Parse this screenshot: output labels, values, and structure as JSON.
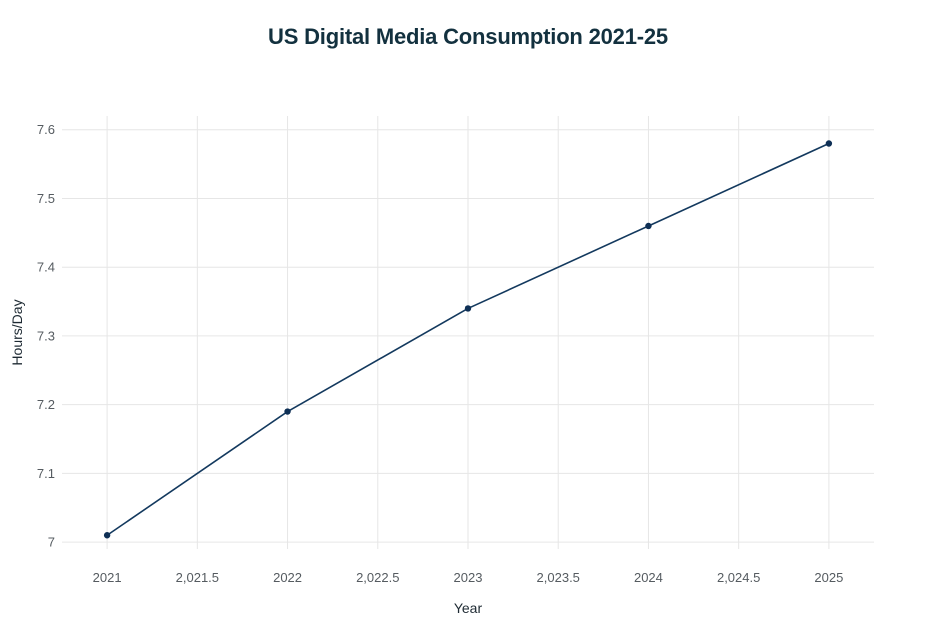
{
  "chart_data": {
    "type": "line",
    "title": "US Digital Media Consumption 2021-25",
    "xlabel": "Year",
    "ylabel": "Hours/Day",
    "x": [
      2021,
      2022,
      2023,
      2024,
      2025
    ],
    "series": [
      {
        "values": [
          7.01,
          7.19,
          7.34,
          7.46,
          7.58
        ]
      }
    ],
    "xlim": [
      2020.75,
      2025.25
    ],
    "ylim": [
      6.99,
      7.62
    ],
    "x_ticks": [
      2021,
      2021.5,
      2022,
      2022.5,
      2023,
      2023.5,
      2024,
      2024.5,
      2025
    ],
    "x_tick_labels": [
      "2021",
      "2,021.5",
      "2022",
      "2,022.5",
      "2023",
      "2,023.5",
      "2024",
      "2,024.5",
      "2025"
    ],
    "y_ticks": [
      7,
      7.1,
      7.2,
      7.3,
      7.4,
      7.5,
      7.6
    ],
    "y_tick_labels": [
      "7",
      "7.1",
      "7.2",
      "7.3",
      "7.4",
      "7.5",
      "7.6"
    ],
    "grid": true,
    "line_color": "#13395e",
    "marker_color": "#0e2f55"
  }
}
